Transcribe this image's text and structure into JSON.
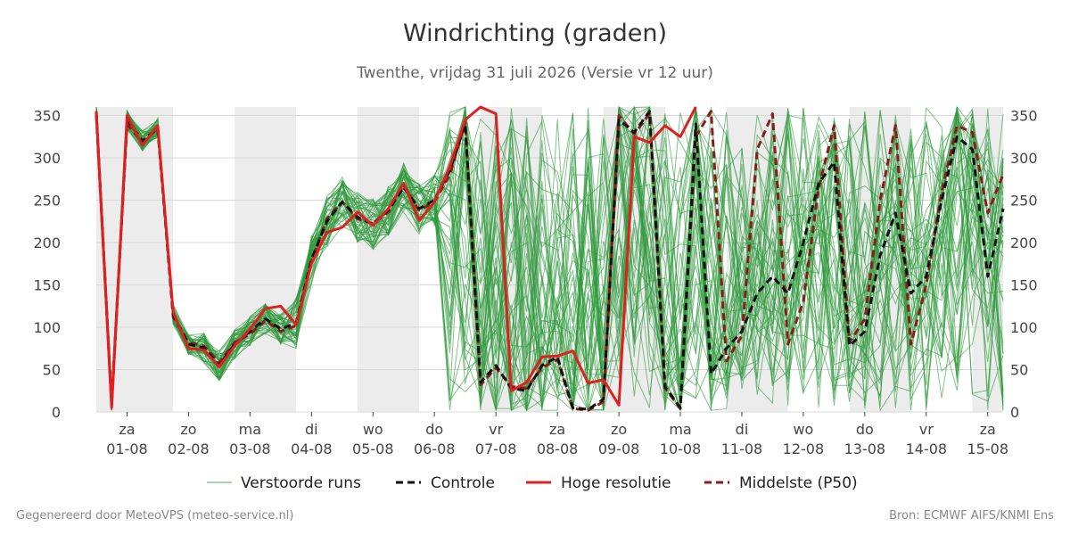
{
  "chart_data": {
    "type": "line",
    "title": "Windrichting (graden)",
    "subtitle": "Twenthe, vrijdag 31 juli 2026 (Versie vr 12 uur)",
    "ylim": [
      0,
      360
    ],
    "yticks": [
      0,
      50,
      100,
      150,
      200,
      250,
      300,
      350
    ],
    "xlim": [
      -0.25,
      14.5
    ],
    "x_ticks": [
      {
        "day": "za",
        "date": "01-08"
      },
      {
        "day": "zo",
        "date": "02-08"
      },
      {
        "day": "ma",
        "date": "03-08"
      },
      {
        "day": "di",
        "date": "04-08"
      },
      {
        "day": "wo",
        "date": "05-08"
      },
      {
        "day": "do",
        "date": "06-08"
      },
      {
        "day": "vr",
        "date": "07-08"
      },
      {
        "day": "za",
        "date": "08-08"
      },
      {
        "day": "zo",
        "date": "09-08"
      },
      {
        "day": "ma",
        "date": "10-08"
      },
      {
        "day": "di",
        "date": "11-08"
      },
      {
        "day": "wo",
        "date": "12-08"
      },
      {
        "day": "do",
        "date": "13-08"
      },
      {
        "day": "vr",
        "date": "14-08"
      },
      {
        "day": "za",
        "date": "15-08"
      }
    ],
    "night_bands": [
      [
        -0.25,
        1.0
      ],
      [
        2.0,
        3.0
      ],
      [
        4.0,
        5.0
      ],
      [
        6.0,
        7.0
      ],
      [
        8.0,
        9.0
      ],
      [
        10.0,
        11.0
      ],
      [
        12.0,
        13.0
      ],
      [
        14.0,
        14.5
      ]
    ],
    "grid": true,
    "legend": {
      "position": "bottom"
    },
    "series": [
      {
        "name": "Hoge resolutie",
        "color": "#e02020",
        "style": "solid",
        "x": [
          -0.25,
          -0.0,
          0.25,
          0.5,
          0.75,
          1.0,
          1.25,
          1.5,
          1.75,
          2.0,
          2.25,
          2.5,
          2.75,
          3.0,
          3.25,
          3.5,
          3.75,
          4.0,
          4.25,
          4.5,
          4.75,
          5.0,
          5.25,
          5.5,
          5.75,
          6.0,
          6.25,
          6.5,
          6.75,
          7.0,
          7.25,
          7.5,
          7.75,
          8.0,
          8.25,
          8.5,
          8.75,
          9.0,
          9.25,
          9.5
        ],
        "values": [
          355,
          5,
          350,
          315,
          338,
          118,
          75,
          73,
          53,
          78,
          98,
          122,
          125,
          103,
          175,
          212,
          218,
          236,
          220,
          240,
          270,
          226,
          248,
          290,
          345,
          360,
          352,
          25,
          35,
          65,
          66,
          72,
          34,
          38,
          8,
          325,
          318,
          338,
          325,
          360
        ]
      },
      {
        "name": "Controle",
        "color": "#111111",
        "style": "dashed",
        "x": [
          -0.25,
          -0.0,
          0.25,
          0.5,
          0.75,
          1.0,
          1.25,
          1.5,
          1.75,
          2.0,
          2.25,
          2.5,
          2.75,
          3.0,
          3.25,
          3.5,
          3.75,
          4.0,
          4.25,
          4.5,
          4.75,
          5.0,
          5.25,
          5.5,
          5.75,
          6.0,
          6.25,
          6.5,
          6.75,
          7.0,
          7.25,
          7.5,
          7.75,
          8.0,
          8.25,
          8.5,
          8.75,
          9.0,
          9.25,
          9.5,
          9.75,
          10.0,
          10.25,
          10.5,
          10.75,
          11.0,
          11.25,
          11.5,
          11.75,
          12.0,
          12.25,
          12.5,
          12.75,
          13.0,
          13.25,
          13.5,
          13.75,
          14.0,
          14.25,
          14.5
        ],
        "values": [
          355,
          8,
          345,
          320,
          335,
          115,
          80,
          76,
          55,
          80,
          95,
          110,
          98,
          105,
          180,
          225,
          248,
          230,
          222,
          238,
          265,
          240,
          250,
          285,
          340,
          35,
          55,
          28,
          25,
          55,
          65,
          5,
          3,
          15,
          345,
          330,
          355,
          30,
          5,
          340,
          45,
          75,
          95,
          140,
          160,
          140,
          200,
          270,
          295,
          78,
          95,
          185,
          235,
          140,
          160,
          250,
          325,
          310,
          160,
          240
        ]
      },
      {
        "name": "Middelste (P50)",
        "color": "#8b1a1a",
        "style": "dashed",
        "x": [
          -0.25,
          -0.0,
          0.25,
          0.5,
          0.75,
          1.0,
          1.25,
          1.5,
          1.75,
          2.0,
          2.25,
          2.5,
          2.75,
          3.0,
          3.25,
          3.5,
          3.75,
          4.0,
          4.25,
          4.5,
          4.75,
          5.0,
          5.25,
          5.5,
          5.75,
          6.0,
          6.25,
          6.5,
          6.75,
          7.0,
          7.25,
          7.5,
          7.75,
          8.0,
          8.25,
          8.5,
          8.75,
          9.0,
          9.25,
          9.5,
          9.75,
          10.0,
          10.25,
          10.5,
          10.75,
          11.0,
          11.25,
          11.5,
          11.75,
          12.0,
          12.25,
          12.5,
          12.75,
          13.0,
          13.25,
          13.5,
          13.75,
          14.0,
          14.25,
          14.5
        ],
        "values": [
          350,
          10,
          340,
          318,
          335,
          112,
          82,
          78,
          58,
          82,
          92,
          108,
          95,
          102,
          178,
          228,
          248,
          228,
          222,
          236,
          268,
          238,
          248,
          280,
          342,
          32,
          52,
          30,
          28,
          52,
          62,
          4,
          2,
          12,
          350,
          328,
          352,
          28,
          4,
          325,
          355,
          60,
          90,
          310,
          352,
          80,
          130,
          265,
          338,
          82,
          110,
          250,
          338,
          80,
          150,
          260,
          338,
          330,
          235,
          280
        ]
      }
    ],
    "ensemble": {
      "name": "Verstoorde runs",
      "color": "#2e9a3c",
      "members": 50,
      "x_start": -0.25,
      "x_step": 0.25
    }
  },
  "legend_labels": {
    "ensemble": "Verstoorde runs",
    "control": "Controle",
    "hires": "Hoge resolutie",
    "median": "Middelste (P50)"
  },
  "footer": {
    "left": "Gegenereerd door MeteoVPS (meteo-service.nl)",
    "right": "Bron: ECMWF AIFS/KNMI Ens"
  }
}
